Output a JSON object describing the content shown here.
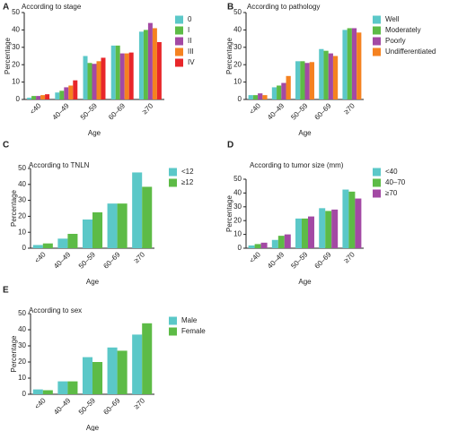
{
  "chart_data": [
    {
      "type": "bar",
      "panel": "A",
      "title": "According to stage",
      "xlabel": "Age",
      "ylabel": "Percentage",
      "categories": [
        "<40",
        "40–49",
        "50–59",
        "60–69",
        "≥70"
      ],
      "series": [
        {
          "name": "0",
          "color": "#5bc8c8",
          "values": [
            1,
            4,
            25,
            31,
            39
          ]
        },
        {
          "name": "I",
          "color": "#5dbb46",
          "values": [
            2,
            5,
            21,
            31,
            40
          ]
        },
        {
          "name": "II",
          "color": "#a349a4",
          "values": [
            2,
            7,
            20.5,
            26.5,
            44
          ]
        },
        {
          "name": "III",
          "color": "#f58220",
          "values": [
            2.5,
            8,
            22,
            26.5,
            41
          ]
        },
        {
          "name": "IV",
          "color": "#e8262a",
          "values": [
            3,
            11,
            24,
            27,
            33
          ]
        }
      ],
      "ylim": [
        0,
        50
      ],
      "yticks": [
        0,
        10,
        20,
        30,
        40,
        50
      ]
    },
    {
      "type": "bar",
      "panel": "B",
      "title": "According to pathology",
      "xlabel": "Age",
      "ylabel": "Percentage",
      "categories": [
        "<40",
        "40–49",
        "50–59",
        "60–69",
        "≥70"
      ],
      "series": [
        {
          "name": "Well",
          "color": "#5bc8c8",
          "values": [
            2.5,
            7,
            22,
            29,
            40
          ]
        },
        {
          "name": "Moderately",
          "color": "#5dbb46",
          "values": [
            2.5,
            8,
            22,
            28,
            41
          ]
        },
        {
          "name": "Poorly",
          "color": "#a349a4",
          "values": [
            3.5,
            9.5,
            21,
            26.5,
            41
          ]
        },
        {
          "name": "Undifferentiated",
          "color": "#f58220",
          "values": [
            2.5,
            13.5,
            21.5,
            25,
            38.5
          ]
        }
      ],
      "ylim": [
        0,
        50
      ],
      "yticks": [
        0,
        10,
        20,
        30,
        40,
        50
      ]
    },
    {
      "type": "bar",
      "panel": "C",
      "title": "According to TNLN",
      "xlabel": "Age",
      "ylabel": "Percentage",
      "categories": [
        "<40",
        "40–49",
        "50–59",
        "60–69",
        "≥70"
      ],
      "series": [
        {
          "name": "<12",
          "color": "#5bc8c8",
          "values": [
            2,
            6,
            18,
            28,
            47.5
          ]
        },
        {
          "name": "≥12",
          "color": "#5dbb46",
          "values": [
            3,
            9,
            22.5,
            28,
            38.5
          ]
        }
      ],
      "ylim": [
        0,
        50
      ],
      "yticks": [
        0,
        10,
        20,
        30,
        40,
        50
      ]
    },
    {
      "type": "bar",
      "panel": "D",
      "title": "According to tumor size (mm)",
      "xlabel": "Age",
      "ylabel": "Percentage",
      "categories": [
        "<40",
        "40–49",
        "50–59",
        "60–69",
        "≥70"
      ],
      "series": [
        {
          "name": "<40",
          "color": "#5bc8c8",
          "values": [
            2,
            6,
            21.5,
            29,
            42.5
          ]
        },
        {
          "name": "40–70",
          "color": "#5dbb46",
          "values": [
            3,
            9,
            21.5,
            27,
            41
          ]
        },
        {
          "name": "≥70",
          "color": "#a349a4",
          "values": [
            4,
            10,
            23,
            28,
            36
          ]
        }
      ],
      "ylim": [
        0,
        50
      ],
      "yticks": [
        0,
        10,
        20,
        30,
        40,
        50
      ]
    },
    {
      "type": "bar",
      "panel": "E",
      "title": "According to sex",
      "xlabel": "Age",
      "ylabel": "Percentage",
      "categories": [
        "<40",
        "40–49",
        "50–59",
        "60–69",
        "≥70"
      ],
      "series": [
        {
          "name": "Male",
          "color": "#5bc8c8",
          "values": [
            3,
            8,
            23,
            29,
            37
          ]
        },
        {
          "name": "Female",
          "color": "#5dbb46",
          "values": [
            2.5,
            8,
            20,
            27,
            44
          ]
        }
      ],
      "ylim": [
        0,
        50
      ],
      "yticks": [
        0,
        10,
        20,
        30,
        40,
        50
      ]
    }
  ]
}
